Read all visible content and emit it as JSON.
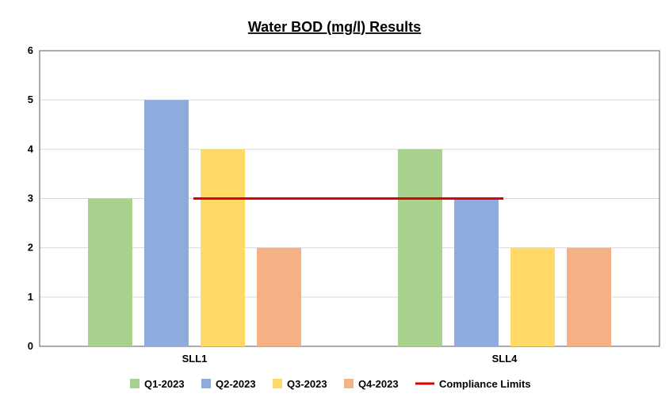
{
  "chart_data": {
    "type": "bar",
    "title": "Water BOD (mg/l) Results",
    "categories": [
      "SLL1",
      "SLL4"
    ],
    "series": [
      {
        "name": "Q1-2023",
        "values": [
          3,
          4
        ],
        "color": "#a9d18e"
      },
      {
        "name": "Q2-2023",
        "values": [
          5,
          3
        ],
        "color": "#8faadc"
      },
      {
        "name": "Q3-2023",
        "values": [
          4,
          2
        ],
        "color": "#ffd966"
      },
      {
        "name": "Q4-2023",
        "values": [
          2,
          2
        ],
        "color": "#f4b183"
      }
    ],
    "compliance": {
      "name": "Compliance Limits",
      "value": 3,
      "color": "#e00000"
    },
    "ylim": [
      0,
      6
    ],
    "yticks": [
      "0",
      "1",
      "2",
      "3",
      "4",
      "5",
      "6"
    ],
    "grid": true,
    "legend": "bottom"
  }
}
